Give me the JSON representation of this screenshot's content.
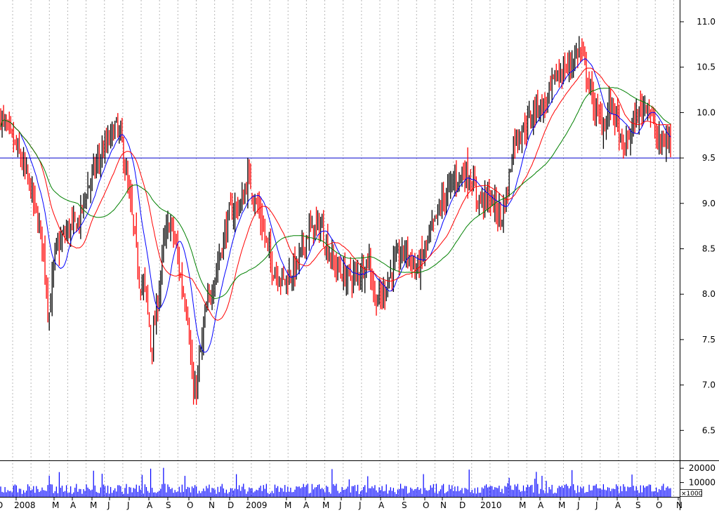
{
  "chart_data": {
    "type": "candlestick",
    "grid": "vertical dashed",
    "y_range": [
      6.3,
      11.25
    ],
    "y_ticks": [
      "11.0",
      "10.5",
      "10.0",
      "9.5",
      "9.0",
      "8.5",
      "8.0",
      "7.5",
      "7.0",
      "6.5"
    ],
    "y_tick_values": [
      11.0,
      10.5,
      10.0,
      9.5,
      9.0,
      8.5,
      8.0,
      7.5,
      7.0,
      6.5
    ],
    "x_labels": [
      "D",
      "2008",
      "M",
      "A",
      "M",
      "J",
      "J",
      "A",
      "S",
      "O",
      "N",
      "D",
      "2009",
      "M",
      "A",
      "M",
      "J",
      "J",
      "A",
      "S",
      "O",
      "N",
      "D",
      "2010",
      "M",
      "A",
      "M",
      "J",
      "J",
      "A",
      "S",
      "O",
      "N"
    ],
    "horizontal_line": 9.5,
    "colors": {
      "up": "#000000",
      "down": "#ff0000",
      "ma_short": "#0000ff",
      "ma_medium": "#ff0000",
      "ma_long": "#008000",
      "hline": "#0000cc",
      "volume": "#0000ff",
      "grid": "#b8b8b8"
    },
    "price_path": [
      [
        0,
        9.95
      ],
      [
        3,
        9.55
      ],
      [
        5,
        9.15
      ],
      [
        7,
        8.55
      ],
      [
        8,
        7.75
      ],
      [
        9,
        8.45
      ],
      [
        11,
        8.7
      ],
      [
        13,
        8.8
      ],
      [
        14,
        9.1
      ],
      [
        16,
        9.45
      ],
      [
        18,
        9.7
      ],
      [
        19,
        9.85
      ],
      [
        20,
        9.7
      ],
      [
        21,
        9.2
      ],
      [
        22,
        8.75
      ],
      [
        23,
        8.15
      ],
      [
        24,
        8.05
      ],
      [
        25,
        7.4
      ],
      [
        26,
        7.9
      ],
      [
        27,
        8.55
      ],
      [
        28,
        8.8
      ],
      [
        29,
        8.55
      ],
      [
        30,
        8.1
      ],
      [
        31,
        7.8
      ],
      [
        32,
        6.8
      ],
      [
        33,
        7.3
      ],
      [
        34,
        7.8
      ],
      [
        36,
        8.35
      ],
      [
        38,
        8.9
      ],
      [
        40,
        9.0
      ],
      [
        41,
        9.3
      ],
      [
        43,
        8.85
      ],
      [
        45,
        8.3
      ],
      [
        47,
        8.15
      ],
      [
        49,
        8.3
      ],
      [
        51,
        8.7
      ],
      [
        53,
        8.75
      ],
      [
        55,
        8.35
      ],
      [
        57,
        8.2
      ],
      [
        59,
        8.2
      ],
      [
        61,
        8.4
      ],
      [
        62,
        7.95
      ],
      [
        63,
        7.95
      ],
      [
        65,
        8.3
      ],
      [
        67,
        8.5
      ],
      [
        69,
        8.25
      ],
      [
        71,
        8.6
      ],
      [
        73,
        9.0
      ],
      [
        75,
        9.25
      ],
      [
        77,
        9.35
      ],
      [
        78,
        9.25
      ],
      [
        79,
        9.05
      ],
      [
        81,
        9.05
      ],
      [
        83,
        8.85
      ],
      [
        84,
        9.15
      ],
      [
        85,
        9.7
      ],
      [
        87,
        9.85
      ],
      [
        89,
        10.1
      ],
      [
        90,
        10.05
      ],
      [
        92,
        10.4
      ],
      [
        94,
        10.5
      ],
      [
        96,
        10.7
      ],
      [
        97,
        10.45
      ],
      [
        98,
        10.15
      ],
      [
        99,
        9.95
      ],
      [
        100,
        9.85
      ],
      [
        101,
        10.1
      ],
      [
        102,
        9.95
      ],
      [
        103,
        9.55
      ],
      [
        105,
        9.9
      ],
      [
        107,
        10.15
      ],
      [
        109,
        9.65
      ],
      [
        111,
        9.7
      ]
    ],
    "volume_range": [
      0,
      25000
    ],
    "volume_ticks": [
      "20000",
      "10000"
    ],
    "volume_tick_values": [
      20000,
      10000
    ],
    "volume_unit": "×1000",
    "volume_typical": 8000
  }
}
